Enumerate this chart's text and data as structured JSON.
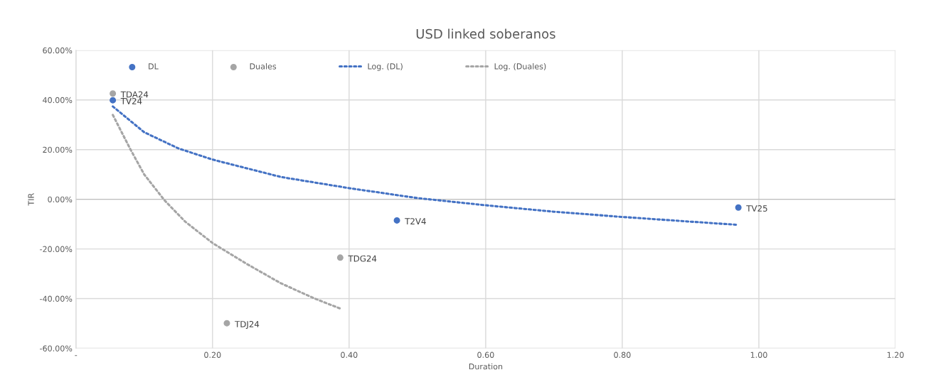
{
  "chart_data": {
    "type": "scatter",
    "title": "USD linked soberanos",
    "xlabel": "Duration",
    "ylabel": "TIR",
    "xlim": [
      0,
      1.2
    ],
    "xticks": [
      {
        "value": 0,
        "label": "-"
      },
      {
        "value": 0.2,
        "label": "0.20"
      },
      {
        "value": 0.4,
        "label": "0.40"
      },
      {
        "value": 0.6,
        "label": "0.60"
      },
      {
        "value": 0.8,
        "label": "0.80"
      },
      {
        "value": 1.0,
        "label": "1.00"
      },
      {
        "value": 1.2,
        "label": "1.20"
      }
    ],
    "ylim": [
      -60,
      60
    ],
    "yticks": [
      {
        "value": -60,
        "label": "-60.00%"
      },
      {
        "value": -40,
        "label": "-40.00%"
      },
      {
        "value": -20,
        "label": "-20.00%"
      },
      {
        "value": 0,
        "label": "0.00%"
      },
      {
        "value": 20,
        "label": "20.00%"
      },
      {
        "value": 40,
        "label": "40.00%"
      },
      {
        "value": 60,
        "label": "60.00%"
      }
    ],
    "grid": true,
    "legend": "top",
    "marker": "circle",
    "series": [
      {
        "name": "DL",
        "type": "scatter",
        "color": "#4472c4",
        "x": [
          0.054,
          0.47,
          0.97
        ],
        "values": [
          39.9,
          -8.5,
          -3.3
        ]
      },
      {
        "name": "Duales",
        "type": "scatter",
        "color": "#a5a5a5",
        "x": [
          0.054,
          0.387,
          0.221
        ],
        "values": [
          42.6,
          -23.5,
          -49.9
        ]
      },
      {
        "name": "Log. (DL)",
        "type": "line",
        "line_style": "dotted",
        "marker": "none",
        "color": "#4472c4",
        "x": [
          0.054,
          0.1,
          0.15,
          0.2,
          0.3,
          0.4,
          0.5,
          0.6,
          0.7,
          0.8,
          0.9,
          0.97
        ],
        "values": [
          37.4,
          27,
          20.5,
          16,
          9,
          4.5,
          0.5,
          -2.4,
          -5,
          -7.1,
          -9,
          -10.3
        ]
      },
      {
        "name": "Log. (Duales)",
        "type": "line",
        "line_style": "dotted",
        "marker": "none",
        "color": "#a5a5a5",
        "x": [
          0.054,
          0.08,
          0.1,
          0.13,
          0.16,
          0.2,
          0.25,
          0.3,
          0.35,
          0.387
        ],
        "values": [
          34,
          20,
          10,
          -0.5,
          -9,
          -17.6,
          -26,
          -33.8,
          -40,
          -44
        ]
      }
    ],
    "annotations": [
      {
        "text": "TDA24",
        "x": 0.054,
        "y": 42.6
      },
      {
        "text": "TV24",
        "x": 0.054,
        "y": 39.9
      },
      {
        "text": "T2V4",
        "x": 0.47,
        "y": -8.5
      },
      {
        "text": "TV25",
        "x": 0.97,
        "y": -3.3
      },
      {
        "text": "TDG24",
        "x": 0.387,
        "y": -23.5
      },
      {
        "text": "TDJ24",
        "x": 0.221,
        "y": -49.9
      }
    ]
  }
}
